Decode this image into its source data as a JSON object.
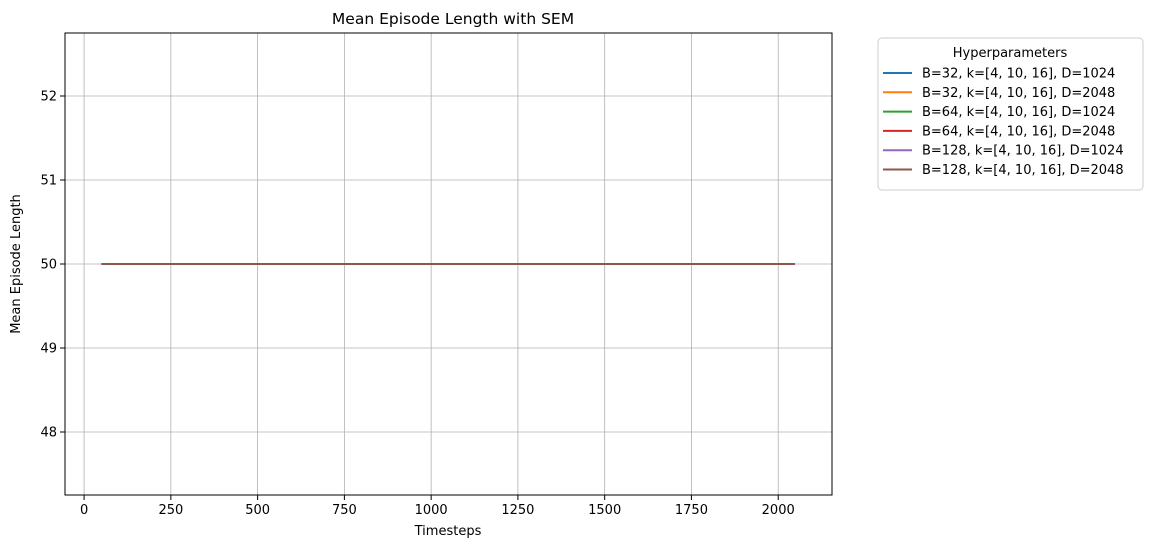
{
  "chart_data": {
    "type": "line",
    "title": "Mean Episode Length with SEM",
    "xlabel": "Timesteps",
    "ylabel": "Mean Episode Length",
    "xlim": [
      -55,
      2155
    ],
    "ylim": [
      47.25,
      52.75
    ],
    "xticks": [
      0,
      250,
      500,
      750,
      1000,
      1250,
      1500,
      1750,
      2000
    ],
    "yticks": [
      48,
      49,
      50,
      51,
      52
    ],
    "grid": true,
    "legend": {
      "title": "Hyperparameters",
      "placement": "outside upper right"
    },
    "series": [
      {
        "name": "B=32, k=[4, 10, 16], D=1024",
        "color": "#1f77b4",
        "x": [
          50,
          2048
        ],
        "y": [
          50,
          50
        ]
      },
      {
        "name": "B=32, k=[4, 10, 16], D=2048",
        "color": "#ff7f0e",
        "x": [
          50,
          2048
        ],
        "y": [
          50,
          50
        ]
      },
      {
        "name": "B=64, k=[4, 10, 16], D=1024",
        "color": "#2ca02c",
        "x": [
          50,
          2048
        ],
        "y": [
          50,
          50
        ]
      },
      {
        "name": "B=64, k=[4, 10, 16], D=2048",
        "color": "#d62728",
        "x": [
          50,
          2048
        ],
        "y": [
          50,
          50
        ]
      },
      {
        "name": "B=128, k=[4, 10, 16], D=1024",
        "color": "#9467bd",
        "x": [
          50,
          2048
        ],
        "y": [
          50,
          50
        ]
      },
      {
        "name": "B=128, k=[4, 10, 16], D=2048",
        "color": "#8c564b",
        "x": [
          50,
          2048
        ],
        "y": [
          50,
          50
        ]
      }
    ]
  }
}
